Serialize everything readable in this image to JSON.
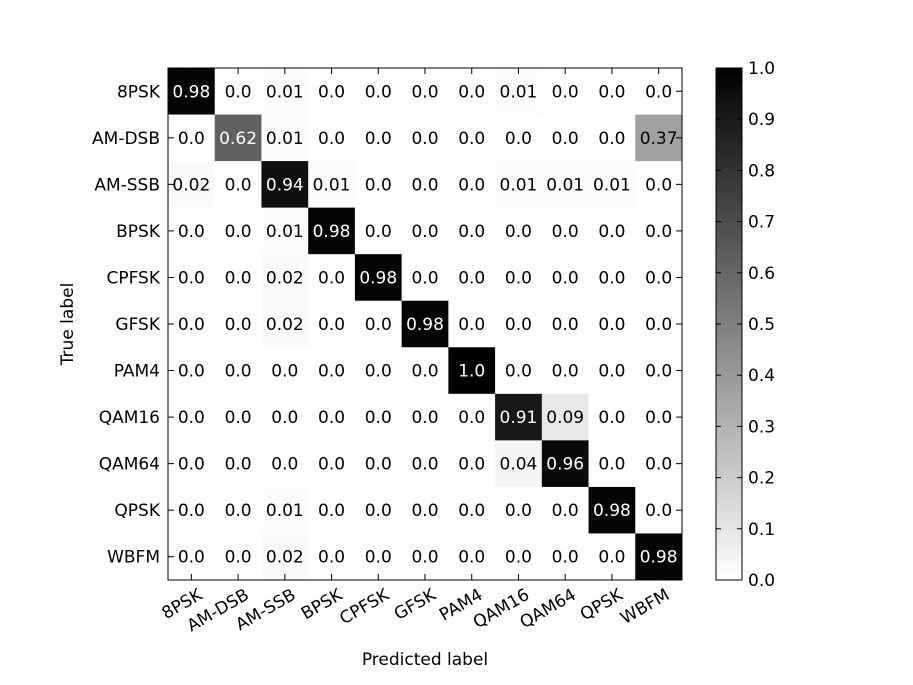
{
  "chart_data": {
    "type": "heatmap",
    "title": "",
    "xlabel": "Predicted label",
    "ylabel": "True label",
    "x_categories": [
      "8PSK",
      "AM-DSB",
      "AM-SSB",
      "BPSK",
      "CPFSK",
      "GFSK",
      "PAM4",
      "QAM16",
      "QAM64",
      "QPSK",
      "WBFM"
    ],
    "y_categories": [
      "8PSK",
      "AM-DSB",
      "AM-SSB",
      "BPSK",
      "CPFSK",
      "GFSK",
      "PAM4",
      "QAM16",
      "QAM64",
      "QPSK",
      "WBFM"
    ],
    "values": [
      [
        0.98,
        0.0,
        0.01,
        0.0,
        0.0,
        0.0,
        0.0,
        0.01,
        0.0,
        0.0,
        0.0
      ],
      [
        0.0,
        0.62,
        0.01,
        0.0,
        0.0,
        0.0,
        0.0,
        0.0,
        0.0,
        0.0,
        0.37
      ],
      [
        0.02,
        0.0,
        0.94,
        0.01,
        0.0,
        0.0,
        0.0,
        0.01,
        0.01,
        0.01,
        0.0
      ],
      [
        0.0,
        0.0,
        0.01,
        0.98,
        0.0,
        0.0,
        0.0,
        0.0,
        0.0,
        0.0,
        0.0
      ],
      [
        0.0,
        0.0,
        0.02,
        0.0,
        0.98,
        0.0,
        0.0,
        0.0,
        0.0,
        0.0,
        0.0
      ],
      [
        0.0,
        0.0,
        0.02,
        0.0,
        0.0,
        0.98,
        0.0,
        0.0,
        0.0,
        0.0,
        0.0
      ],
      [
        0.0,
        0.0,
        0.0,
        0.0,
        0.0,
        0.0,
        1.0,
        0.0,
        0.0,
        0.0,
        0.0
      ],
      [
        0.0,
        0.0,
        0.0,
        0.0,
        0.0,
        0.0,
        0.0,
        0.91,
        0.09,
        0.0,
        0.0
      ],
      [
        0.0,
        0.0,
        0.0,
        0.0,
        0.0,
        0.0,
        0.0,
        0.04,
        0.96,
        0.0,
        0.0
      ],
      [
        0.0,
        0.0,
        0.01,
        0.0,
        0.0,
        0.0,
        0.0,
        0.0,
        0.0,
        0.98,
        0.0
      ],
      [
        0.0,
        0.0,
        0.02,
        0.0,
        0.0,
        0.0,
        0.0,
        0.0,
        0.0,
        0.0,
        0.98
      ]
    ],
    "cell_labels": [
      [
        "0.98",
        "0.0",
        "0.01",
        "0.0",
        "0.0",
        "0.0",
        "0.0",
        "0.01",
        "0.0",
        "0.0",
        "0.0"
      ],
      [
        "0.0",
        "0.62",
        "0.01",
        "0.0",
        "0.0",
        "0.0",
        "0.0",
        "0.0",
        "0.0",
        "0.0",
        "0.37"
      ],
      [
        "0.02",
        "0.0",
        "0.94",
        "0.01",
        "0.0",
        "0.0",
        "0.0",
        "0.01",
        "0.01",
        "0.01",
        "0.0"
      ],
      [
        "0.0",
        "0.0",
        "0.01",
        "0.98",
        "0.0",
        "0.0",
        "0.0",
        "0.0",
        "0.0",
        "0.0",
        "0.0"
      ],
      [
        "0.0",
        "0.0",
        "0.02",
        "0.0",
        "0.98",
        "0.0",
        "0.0",
        "0.0",
        "0.0",
        "0.0",
        "0.0"
      ],
      [
        "0.0",
        "0.0",
        "0.02",
        "0.0",
        "0.0",
        "0.98",
        "0.0",
        "0.0",
        "0.0",
        "0.0",
        "0.0"
      ],
      [
        "0.0",
        "0.0",
        "0.0",
        "0.0",
        "0.0",
        "0.0",
        "1.0",
        "0.0",
        "0.0",
        "0.0",
        "0.0"
      ],
      [
        "0.0",
        "0.0",
        "0.0",
        "0.0",
        "0.0",
        "0.0",
        "0.0",
        "0.91",
        "0.09",
        "0.0",
        "0.0"
      ],
      [
        "0.0",
        "0.0",
        "0.0",
        "0.0",
        "0.0",
        "0.0",
        "0.0",
        "0.04",
        "0.96",
        "0.0",
        "0.0"
      ],
      [
        "0.0",
        "0.0",
        "0.01",
        "0.0",
        "0.0",
        "0.0",
        "0.0",
        "0.0",
        "0.0",
        "0.98",
        "0.0"
      ],
      [
        "0.0",
        "0.0",
        "0.02",
        "0.0",
        "0.0",
        "0.0",
        "0.0",
        "0.0",
        "0.0",
        "0.0",
        "0.98"
      ]
    ],
    "colormap": "grayscale (white to black)",
    "colorbar": {
      "range": [
        0.0,
        1.0
      ],
      "ticks": [
        "0.0",
        "0.1",
        "0.2",
        "0.3",
        "0.4",
        "0.5",
        "0.6",
        "0.7",
        "0.8",
        "0.9",
        "1.0"
      ],
      "position": "right"
    },
    "grid": false
  }
}
